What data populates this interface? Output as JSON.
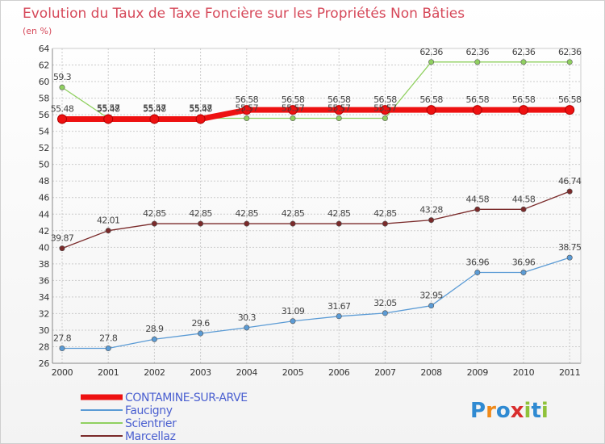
{
  "colors": {
    "title": "#d6495a",
    "grid": "#cccccc",
    "axis": "#888888",
    "legend_text": "#4a5fd0"
  },
  "logo": {
    "text": "Proxiti",
    "letters": [
      "P",
      "r",
      "o",
      "x",
      "i",
      "t",
      "i"
    ],
    "letter_colors": [
      "#2f8ad2",
      "#f08a1a",
      "#2f8ad2",
      "#d92d2d",
      "#8fc23a",
      "#2f8ad2",
      "#8fc23a"
    ]
  },
  "chart_data": {
    "type": "line",
    "title": "Evolution du Taux de Taxe Foncière sur les Propriétés Non Bâties",
    "ylabel": "(en %)",
    "xlabel": "",
    "categories": [
      "2000",
      "2001",
      "2002",
      "2003",
      "2004",
      "2005",
      "2006",
      "2007",
      "2008",
      "2009",
      "2010",
      "2011"
    ],
    "ylim": [
      26,
      64
    ],
    "ytick_step": 2,
    "grid": true,
    "series": [
      {
        "name": "Scientrier",
        "color": "#90d060",
        "width": 1.3,
        "values": [
          59.3,
          55.57,
          55.57,
          55.57,
          55.57,
          55.57,
          55.57,
          55.57,
          62.36,
          62.36,
          62.36,
          62.36
        ],
        "labels": [
          "59.3",
          "55.57",
          "55.57",
          "55.57",
          "55.57",
          "55.57",
          "55.57",
          "55.57",
          "62.36",
          "62.36",
          "62.36",
          "62.36"
        ]
      },
      {
        "name": "CONTAMINE-SUR-ARVE",
        "color": "#ee1111",
        "width": 7,
        "values": [
          55.48,
          55.48,
          55.48,
          55.48,
          56.58,
          56.58,
          56.58,
          56.58,
          56.58,
          56.58,
          56.58,
          56.58
        ],
        "labels": [
          "55.48",
          "55.48",
          "55.48",
          "55.48",
          "56.58",
          "56.58",
          "56.58",
          "56.58",
          "56.58",
          "56.58",
          "56.58",
          "56.58"
        ]
      },
      {
        "name": "Marcellaz",
        "color": "#7a2a2a",
        "width": 1.3,
        "values": [
          39.87,
          42.01,
          42.85,
          42.85,
          42.85,
          42.85,
          42.85,
          42.85,
          43.28,
          44.58,
          44.58,
          46.74
        ],
        "labels": [
          "39.87",
          "42.01",
          "42.85",
          "42.85",
          "42.85",
          "42.85",
          "42.85",
          "42.85",
          "43.28",
          "44.58",
          "44.58",
          "46.74"
        ]
      },
      {
        "name": "Faucigny",
        "color": "#5b9bd5",
        "width": 1.3,
        "values": [
          27.8,
          27.8,
          28.9,
          29.6,
          30.3,
          31.09,
          31.67,
          32.05,
          32.95,
          36.96,
          36.96,
          38.75
        ],
        "labels": [
          "27.8",
          "27.8",
          "28.9",
          "29.6",
          "30.3",
          "31.09",
          "31.67",
          "32.05",
          "32.95",
          "36.96",
          "36.96",
          "38.75"
        ]
      }
    ],
    "legend": {
      "placement": "bottom-left",
      "entries": [
        "CONTAMINE-SUR-ARVE",
        "Faucigny",
        "Scientrier",
        "Marcellaz"
      ],
      "entry_colors": [
        "#ee1111",
        "#5b9bd5",
        "#90d060",
        "#7a2a2a"
      ]
    }
  }
}
